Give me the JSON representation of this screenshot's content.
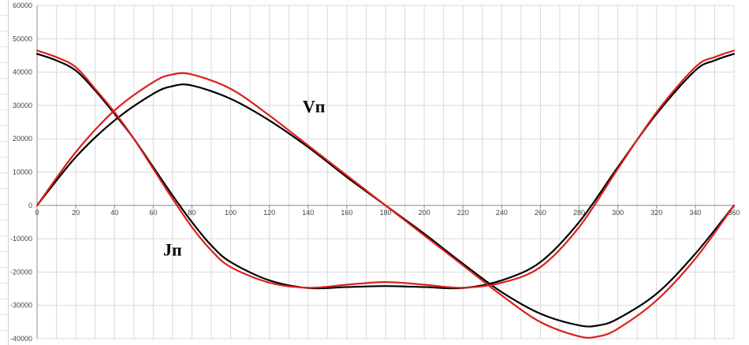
{
  "chart_data": {
    "type": "line",
    "title": "",
    "xlabel": "",
    "ylabel": "",
    "xlim": [
      0,
      360
    ],
    "ylim": [
      -40000,
      60000
    ],
    "x_ticks": [
      "0",
      "20",
      "40",
      "60",
      "80",
      "100",
      "120",
      "140",
      "160",
      "180",
      "200",
      "220",
      "240",
      "260",
      "280",
      "300",
      "320",
      "340",
      "360"
    ],
    "y_ticks": [
      "60000",
      "50000",
      "40000",
      "30000",
      "20000",
      "10000",
      "0",
      "-10000",
      "-20000",
      "-30000",
      "-40000"
    ],
    "grid": true,
    "legend": "none",
    "annotations": [
      {
        "text": "Vп",
        "x": 143,
        "y": 28000
      },
      {
        "text": "Jп",
        "x": 70,
        "y": -15000
      }
    ],
    "series": [
      {
        "color": "#000000",
        "x": [
          0,
          20,
          40,
          60,
          70,
          80,
          100,
          120,
          140,
          160,
          180,
          200,
          220,
          240,
          260,
          280,
          290,
          300,
          320,
          340,
          360
        ],
        "y": [
          0,
          14500,
          25500,
          33500,
          35800,
          36000,
          32000,
          25500,
          17500,
          8500,
          0,
          -8500,
          -17500,
          -26000,
          -32500,
          -36000,
          -36000,
          -34000,
          -26500,
          -14500,
          0
        ]
      },
      {
        "color": "#dd1f1f",
        "x": [
          0,
          20,
          40,
          60,
          70,
          80,
          100,
          120,
          140,
          160,
          180,
          200,
          220,
          240,
          260,
          280,
          290,
          300,
          320,
          340,
          360
        ],
        "y": [
          0,
          16000,
          28500,
          37000,
          39300,
          39300,
          35000,
          27000,
          18000,
          9000,
          0,
          -9000,
          -18000,
          -27000,
          -35000,
          -39300,
          -39300,
          -37000,
          -28500,
          -16000,
          0
        ]
      },
      {
        "color": "#000000",
        "x": [
          0,
          10,
          20,
          30,
          40,
          50,
          60,
          70,
          80,
          90,
          100,
          120,
          140,
          160,
          180,
          200,
          220,
          240,
          260,
          280,
          300,
          320,
          340,
          350,
          360
        ],
        "y": [
          45500,
          43500,
          40500,
          34500,
          27500,
          20000,
          11500,
          3000,
          -5000,
          -12000,
          -17000,
          -22500,
          -24800,
          -24500,
          -24200,
          -24500,
          -24800,
          -22500,
          -17000,
          -5000,
          11500,
          27500,
          40500,
          43500,
          45500
        ]
      },
      {
        "color": "#dd1f1f",
        "x": [
          0,
          10,
          20,
          30,
          40,
          50,
          60,
          70,
          80,
          90,
          100,
          120,
          140,
          160,
          180,
          200,
          220,
          240,
          260,
          280,
          300,
          320,
          340,
          350,
          360
        ],
        "y": [
          46500,
          44500,
          41500,
          35000,
          28000,
          20000,
          11000,
          2000,
          -6500,
          -13500,
          -18500,
          -23200,
          -24700,
          -23800,
          -23000,
          -23800,
          -24700,
          -23200,
          -18500,
          -6500,
          11000,
          28000,
          41500,
          44500,
          46500
        ]
      }
    ]
  }
}
